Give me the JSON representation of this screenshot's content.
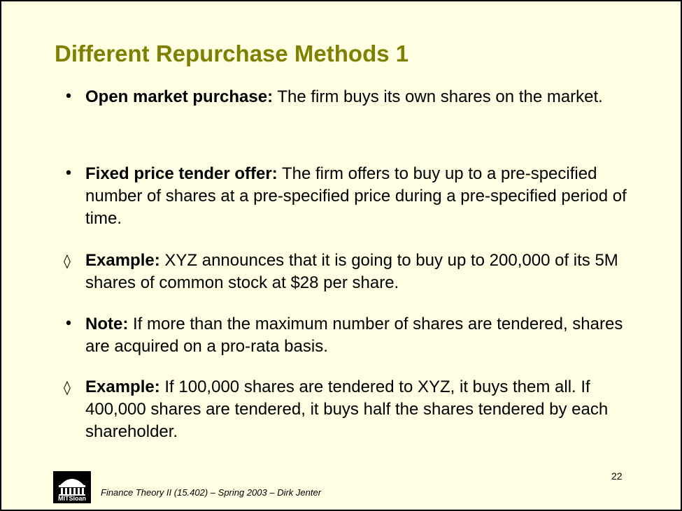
{
  "slide": {
    "title": "Different Repurchase Methods 1",
    "page_number": "22",
    "footer": "Finance Theory II (15.402) – Spring 2003 – Dirk Jenter",
    "logo_text": "MITSloan"
  },
  "bullets": [
    {
      "marker": "•",
      "bold": "Open market purchase:",
      "text": " The firm buys its own shares on the market."
    },
    {
      "marker": "•",
      "bold": "Fixed price tender offer:",
      "text": " The firm offers to buy up to a pre-specified number of shares at a pre-specified price during a pre-specified period of time."
    },
    {
      "marker": "◊",
      "bold": "Example:",
      "text": " XYZ announces that it is going to buy up to 200,000 of its 5M shares of common stock at $28 per share."
    },
    {
      "marker": "•",
      "bold": "Note:",
      "text": " If more than the maximum number of shares are tendered, shares are acquired on a pro-rata basis."
    },
    {
      "marker": "◊",
      "bold": "Example:",
      "text": " If 100,000 shares are tendered to XYZ, it buys them all. If 400,000 shares are tendered, it buys half the shares tendered by each shareholder."
    }
  ],
  "colors": {
    "background": "#ffffe3",
    "title": "#808000",
    "border": "#000000"
  }
}
